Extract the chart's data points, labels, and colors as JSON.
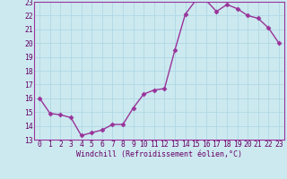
{
  "x": [
    0,
    1,
    2,
    3,
    4,
    5,
    6,
    7,
    8,
    9,
    10,
    11,
    12,
    13,
    14,
    15,
    16,
    17,
    18,
    19,
    20,
    21,
    22,
    23
  ],
  "y": [
    16.0,
    14.9,
    14.8,
    14.6,
    13.3,
    13.5,
    13.7,
    14.1,
    14.1,
    15.3,
    16.3,
    16.6,
    16.7,
    19.5,
    22.1,
    23.1,
    23.1,
    22.3,
    22.8,
    22.5,
    22.0,
    21.8,
    21.1,
    20.0
  ],
  "line_color": "#993399",
  "marker": "D",
  "marker_size": 2.5,
  "bg_color": "#cce9f0",
  "grid_color": "#b0d8e4",
  "xlabel": "Windchill (Refroidissement éolien,°C)",
  "xlim": [
    -0.5,
    23.5
  ],
  "ylim": [
    13,
    23
  ],
  "yticks": [
    13,
    14,
    15,
    16,
    17,
    18,
    19,
    20,
    21,
    22,
    23
  ],
  "xticks": [
    0,
    1,
    2,
    3,
    4,
    5,
    6,
    7,
    8,
    9,
    10,
    11,
    12,
    13,
    14,
    15,
    16,
    17,
    18,
    19,
    20,
    21,
    22,
    23
  ],
  "label_color": "#660066",
  "label_fontsize": 6.0,
  "tick_fontsize": 5.8,
  "spine_color": "#993399",
  "linewidth": 1.0
}
